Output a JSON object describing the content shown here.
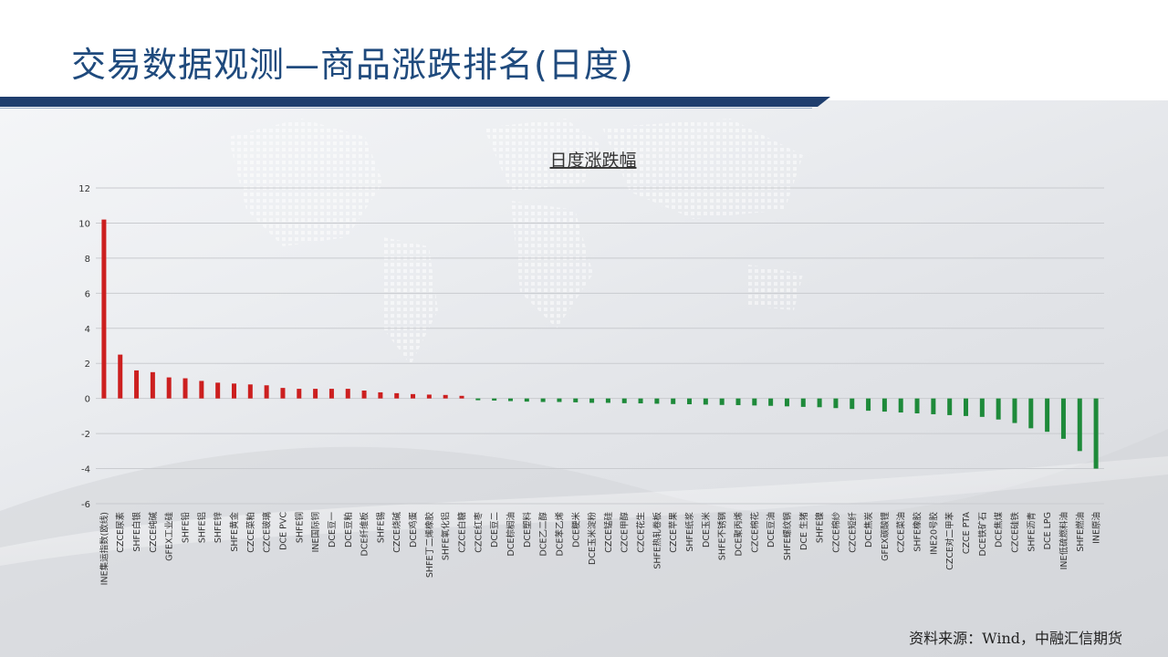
{
  "header": {
    "title": "交易数据观测—商品涨跌排名(日度)"
  },
  "footer": {
    "source": "资料来源：Wind，中融汇信期货"
  },
  "colors": {
    "title": "#1f4a7d",
    "band": "#1f3e6e",
    "up": "#cc1f1f",
    "down": "#1e8a3a"
  },
  "chart_data": {
    "type": "bar",
    "title": "日度涨跌幅",
    "xlabel": "",
    "ylabel": "",
    "ylim": [
      -6,
      12
    ],
    "yticks": [
      12,
      10,
      8,
      6,
      4,
      2,
      0,
      -2,
      -4,
      -6
    ],
    "grid": true,
    "legend": "none",
    "categories": [
      "INE集运指数(欧线)",
      "CZCE尿素",
      "SHFE白银",
      "CZCE纯碱",
      "GFEX工业硅",
      "SHFE铅",
      "SHFE铝",
      "SHFE锌",
      "SHFE黄金",
      "CZCE菜粕",
      "CZCE玻璃",
      "DCE PVC",
      "SHFE铜",
      "INE国际铜",
      "DCE豆一",
      "DCE豆粕",
      "DCE纤维板",
      "SHFE锡",
      "CZCE烧碱",
      "DCE鸡蛋",
      "SHFE丁二烯橡胶",
      "SHFE氧化铝",
      "CZCE白糖",
      "CZCE红枣",
      "DCE豆二",
      "DCE棕榈油",
      "DCE塑料",
      "DCE乙二醇",
      "DCE苯乙烯",
      "DCE粳米",
      "DCE玉米淀粉",
      "CZCE锰硅",
      "CZCE甲醇",
      "CZCE花生",
      "SHFE热轧卷板",
      "CZCE苹果",
      "SHFE纸浆",
      "DCE玉米",
      "SHFE不锈钢",
      "DCE聚丙烯",
      "CZCE棉花",
      "DCE豆油",
      "SHFE螺纹钢",
      "DCE 生猪",
      "SHFE镍",
      "CZCE棉纱",
      "CZCE短纤",
      "DCE焦炭",
      "GFEX碳酸锂",
      "CZCE菜油",
      "SHFE橡胶",
      "INE20号胶",
      "CZCE对二甲苯",
      "CZCE PTA",
      "DCE铁矿石",
      "DCE焦煤",
      "CZCE硅铁",
      "SHFE沥青",
      "DCE LPG",
      "INE低硫燃料油",
      "SHFE燃油",
      "INE原油"
    ],
    "values": [
      10.2,
      2.5,
      1.6,
      1.5,
      1.2,
      1.15,
      1.0,
      0.9,
      0.85,
      0.8,
      0.75,
      0.6,
      0.55,
      0.55,
      0.55,
      0.55,
      0.45,
      0.35,
      0.3,
      0.25,
      0.22,
      0.2,
      0.15,
      -0.1,
      -0.12,
      -0.15,
      -0.18,
      -0.2,
      -0.2,
      -0.22,
      -0.25,
      -0.25,
      -0.27,
      -0.28,
      -0.3,
      -0.32,
      -0.33,
      -0.35,
      -0.37,
      -0.38,
      -0.4,
      -0.42,
      -0.45,
      -0.48,
      -0.5,
      -0.55,
      -0.6,
      -0.7,
      -0.75,
      -0.8,
      -0.85,
      -0.9,
      -0.95,
      -1.0,
      -1.05,
      -1.2,
      -1.4,
      -1.7,
      -1.9,
      -2.3,
      -3.0,
      -4.0
    ]
  }
}
